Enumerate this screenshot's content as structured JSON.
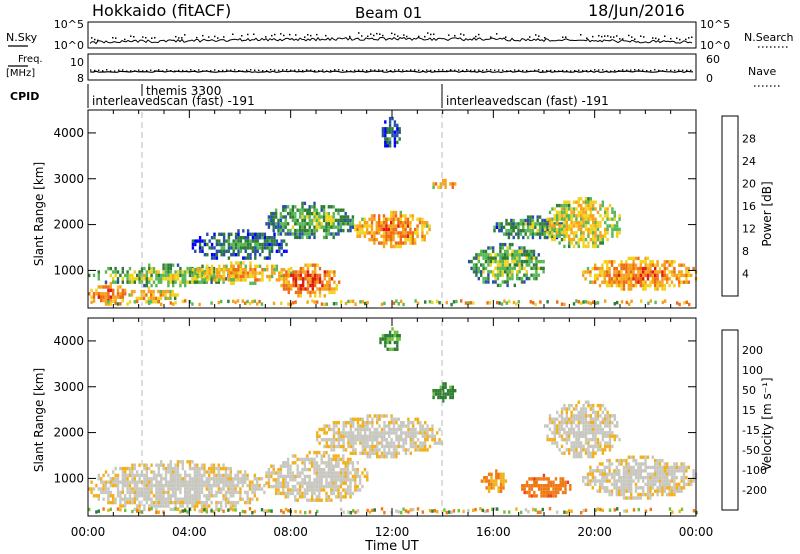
{
  "header": {
    "station": "Hokkaido (fitACF)",
    "beam": "Beam 01",
    "date": "18/Jun/2016"
  },
  "strip": {
    "nsky_label": "N.Sky",
    "nsky_ticks": [
      "10^5",
      "10^0"
    ],
    "nsearch_label": "N.Search",
    "nsearch_ticks": [
      "10^5",
      "10^0"
    ],
    "freq_label_1": "Freq.",
    "freq_label_2": "[MHz]",
    "freq_ticks": [
      "10",
      "8"
    ],
    "nave_label": "Nave",
    "nave_ticks": [
      "60",
      "0"
    ],
    "cpid_label": "CPID",
    "cpid_events": [
      {
        "time": "00:00",
        "name": "interleavedscan (fast) -191"
      },
      {
        "time": "02:15",
        "name": "themis 3300"
      },
      {
        "time": "14:00",
        "name": "interleavedscan (fast) -191"
      }
    ]
  },
  "axes": {
    "ylabel": "Slant Range [km]",
    "xlabel": "Time UT",
    "y_ticks": [
      "1000",
      "2000",
      "3000",
      "4000"
    ],
    "x_ticks": [
      "00:00",
      "04:00",
      "08:00",
      "12:00",
      "16:00",
      "20:00",
      "00:00"
    ]
  },
  "power_colorbar": {
    "label": "Power [dB]",
    "ticks": [
      "4",
      "8",
      "12",
      "16",
      "20",
      "24",
      "28"
    ],
    "colors": [
      "#0000ff",
      "#2a4fa8",
      "#2e7d32",
      "#58b858",
      "#f2d21a",
      "#f6a21c",
      "#ef6a14",
      "#e01a10"
    ]
  },
  "velocity_colorbar": {
    "label": "Velocity [m s⁻¹]",
    "ticks": [
      "200",
      "100",
      "50",
      "15",
      "-15",
      "-50",
      "-100",
      "-200"
    ],
    "colors": [
      "#1a2aa8",
      "#2a4fa8",
      "#2e7d32",
      "#6bc43a",
      "#c8c8c0",
      "#f2b01a",
      "#ef7a14",
      "#f04018",
      "#e01010"
    ]
  },
  "chart_data": [
    {
      "type": "heatmap",
      "title": "Power",
      "xlabel": "Time UT",
      "ylabel": "Slant Range [km]",
      "xlim": [
        0,
        24
      ],
      "ylim": [
        180,
        4500
      ],
      "colorbar": "Power [dB]",
      "regions": [
        {
          "t0": 0,
          "t1": 1.5,
          "r0": 300,
          "r1": 750,
          "value_db": 26
        },
        {
          "t0": 1.5,
          "t1": 3.5,
          "r0": 350,
          "r1": 650,
          "value_db": 22
        },
        {
          "t0": 0,
          "t1": 6,
          "r0": 700,
          "r1": 1150,
          "value_db": 16
        },
        {
          "t0": 4,
          "t1": 8,
          "r0": 750,
          "r1": 1200,
          "value_db": 22
        },
        {
          "t0": 7.5,
          "t1": 10,
          "r0": 450,
          "r1": 1150,
          "value_db": 27
        },
        {
          "t0": 4,
          "t1": 8,
          "r0": 1250,
          "r1": 1900,
          "value_db": 10
        },
        {
          "t0": 7,
          "t1": 10.5,
          "r0": 1700,
          "r1": 2500,
          "value_db": 14
        },
        {
          "t0": 10.5,
          "t1": 13.5,
          "r0": 1550,
          "r1": 2300,
          "value_db": 25
        },
        {
          "t0": 11.5,
          "t1": 12.3,
          "r0": 3700,
          "r1": 4350,
          "value_db": 9
        },
        {
          "t0": 13.5,
          "t1": 14.5,
          "r0": 2800,
          "r1": 3000,
          "value_db": 24
        },
        {
          "t0": 15,
          "t1": 18,
          "r0": 700,
          "r1": 1600,
          "value_db": 15
        },
        {
          "t0": 16,
          "t1": 19,
          "r0": 1700,
          "r1": 2200,
          "value_db": 13
        },
        {
          "t0": 18,
          "t1": 21,
          "r0": 1500,
          "r1": 2600,
          "value_db": 20
        },
        {
          "t0": 19.5,
          "t1": 24,
          "r0": 600,
          "r1": 1300,
          "value_db": 25
        }
      ]
    },
    {
      "type": "heatmap",
      "title": "Velocity",
      "xlabel": "Time UT",
      "ylabel": "Slant Range [km]",
      "xlim": [
        0,
        24
      ],
      "ylim": [
        180,
        4500
      ],
      "colorbar": "Velocity [m s⁻¹]",
      "regions": [
        {
          "t0": 0,
          "t1": 7,
          "r0": 300,
          "r1": 1400,
          "value_ms": 0
        },
        {
          "t0": 7,
          "t1": 11,
          "r0": 500,
          "r1": 1600,
          "value_ms": 0
        },
        {
          "t0": 9,
          "t1": 14,
          "r0": 1500,
          "r1": 2400,
          "value_ms": 0
        },
        {
          "t0": 11.5,
          "t1": 12.3,
          "r0": 3800,
          "r1": 4300,
          "value_ms": 60
        },
        {
          "t0": 13.5,
          "t1": 14.5,
          "r0": 2700,
          "r1": 3100,
          "value_ms": 70
        },
        {
          "t0": 15.5,
          "t1": 16.5,
          "r0": 700,
          "r1": 1200,
          "value_ms": -40
        },
        {
          "t0": 17,
          "t1": 19,
          "r0": 600,
          "r1": 1100,
          "value_ms": -80
        },
        {
          "t0": 18,
          "t1": 21,
          "r0": 1500,
          "r1": 2700,
          "value_ms": 0
        },
        {
          "t0": 19.5,
          "t1": 24,
          "r0": 600,
          "r1": 1500,
          "value_ms": 0
        }
      ]
    }
  ]
}
